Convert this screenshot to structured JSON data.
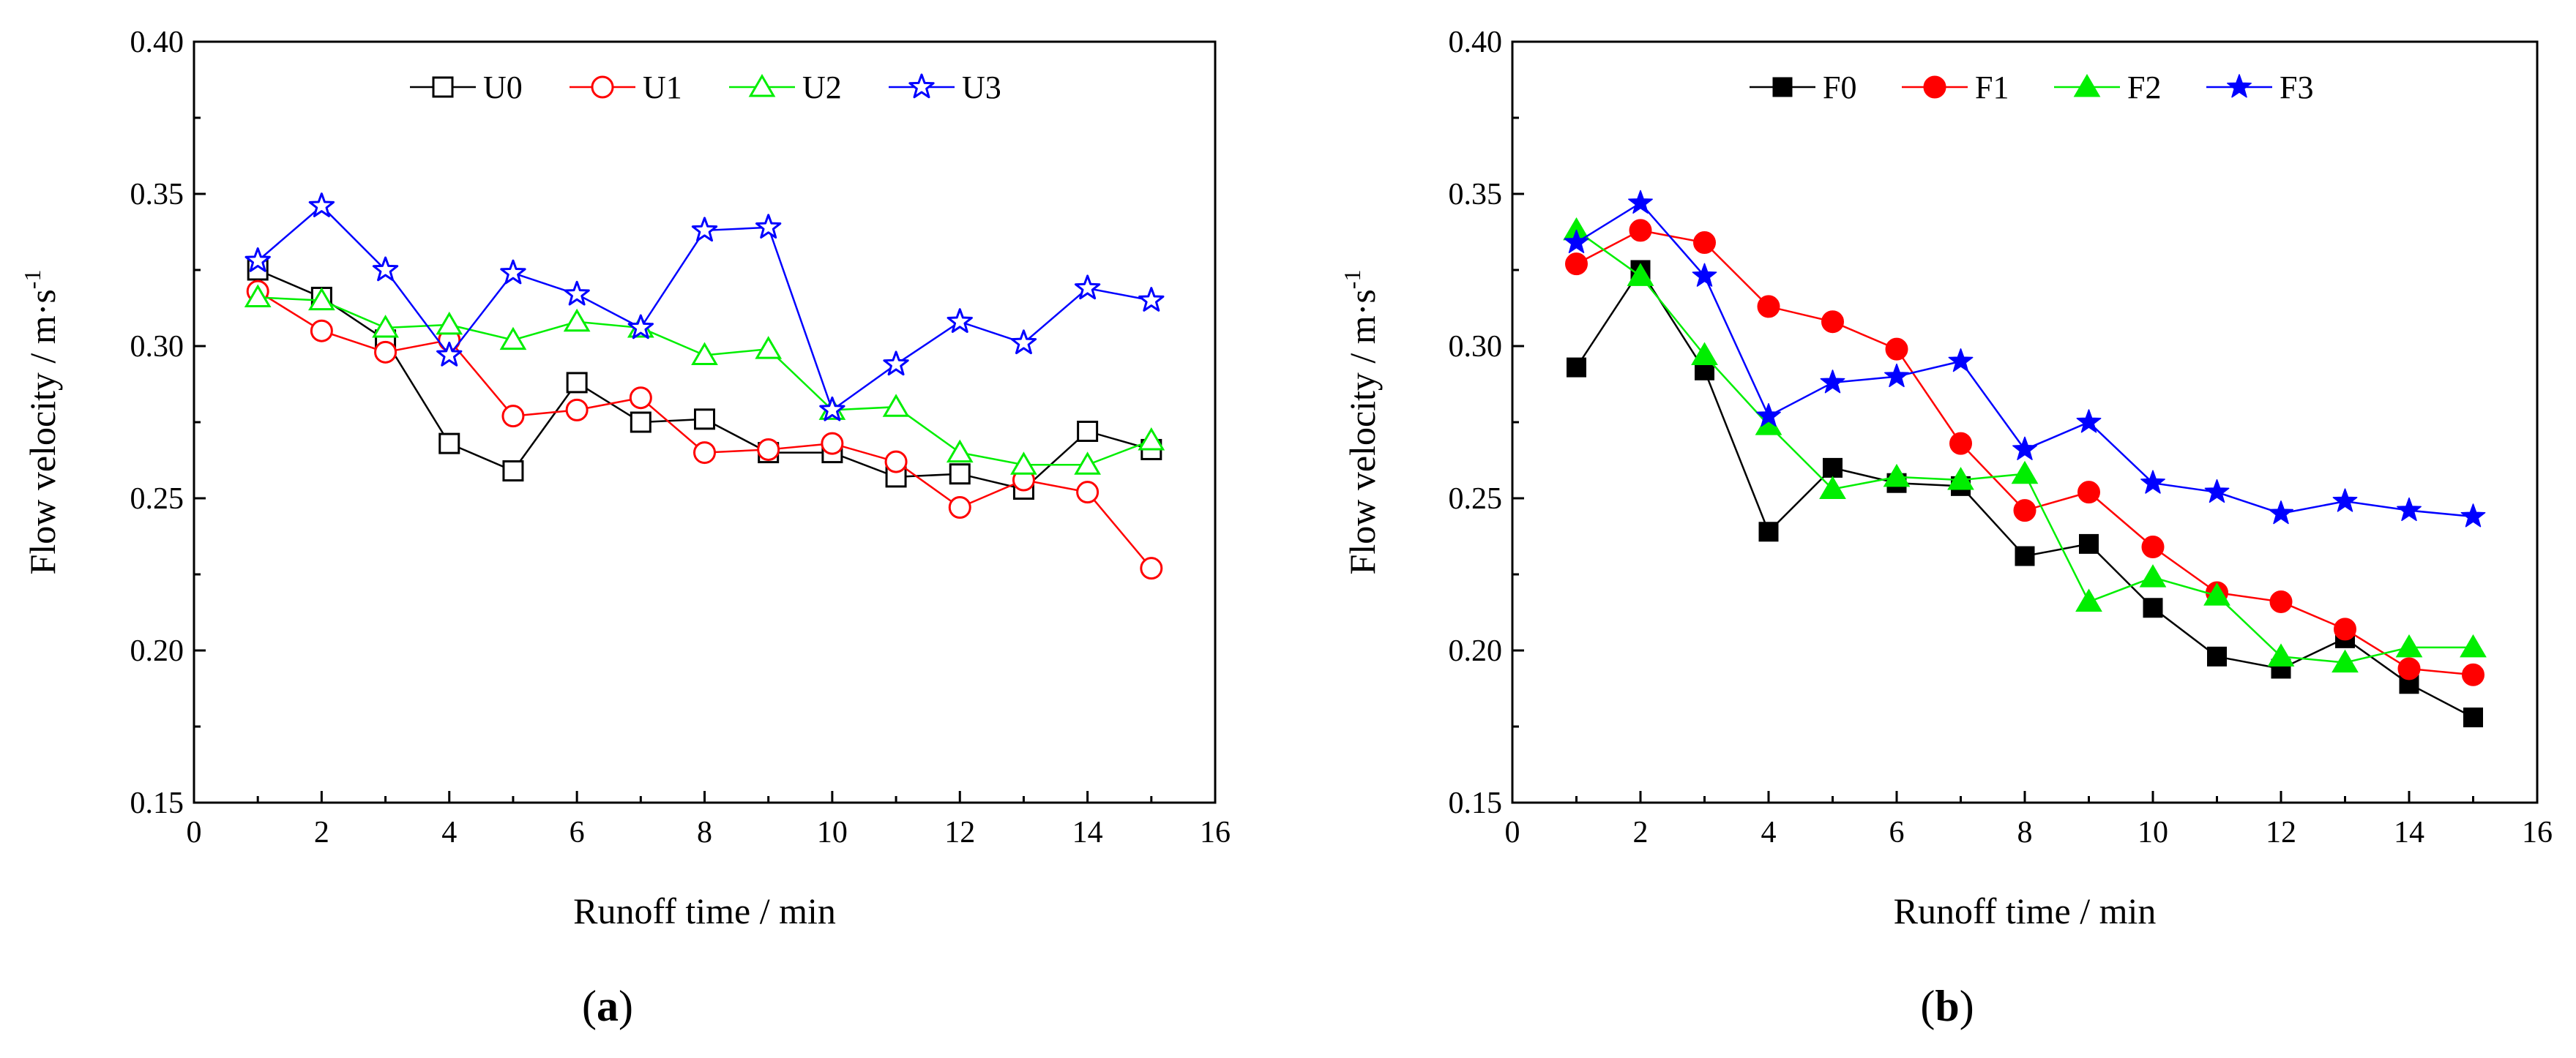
{
  "chart_data": [
    {
      "type": "line",
      "panel_label": "(a)",
      "xlabel": "Runoff time / min",
      "ylabel": "Flow velocity / m·s",
      "ylabel_sup": "-1",
      "xlim": [
        0,
        16
      ],
      "ylim": [
        0.15,
        0.4
      ],
      "xticks": [
        0,
        2,
        4,
        6,
        8,
        10,
        12,
        14,
        16
      ],
      "yticks": [
        "0.15",
        "0.20",
        "0.25",
        "0.30",
        "0.35",
        "0.40"
      ],
      "legend_position": "top",
      "x": [
        1,
        2,
        3,
        4,
        5,
        6,
        7,
        8,
        9,
        10,
        11,
        12,
        13,
        14,
        15
      ],
      "series": [
        {
          "name": "U0",
          "color": "#000000",
          "marker": "square",
          "filled": false,
          "values": [
            0.325,
            0.316,
            0.302,
            0.268,
            0.259,
            0.288,
            0.275,
            0.276,
            0.265,
            0.265,
            0.257,
            0.258,
            0.253,
            0.272,
            0.266
          ]
        },
        {
          "name": "U1",
          "color": "#ff0000",
          "marker": "circle",
          "filled": false,
          "values": [
            0.318,
            0.305,
            0.298,
            0.302,
            0.277,
            0.279,
            0.283,
            0.265,
            0.266,
            0.268,
            0.262,
            0.247,
            0.256,
            0.252,
            0.227
          ]
        },
        {
          "name": "U2",
          "color": "#00ee00",
          "marker": "triangle",
          "filled": false,
          "values": [
            0.316,
            0.315,
            0.306,
            0.307,
            0.302,
            0.308,
            0.306,
            0.297,
            0.299,
            0.279,
            0.28,
            0.265,
            0.261,
            0.261,
            0.269
          ]
        },
        {
          "name": "U3",
          "color": "#0000ff",
          "marker": "star",
          "filled": false,
          "values": [
            0.328,
            0.346,
            0.325,
            0.297,
            0.324,
            0.317,
            0.306,
            0.338,
            0.339,
            0.279,
            0.294,
            0.308,
            0.301,
            0.319,
            0.315
          ]
        }
      ]
    },
    {
      "type": "line",
      "panel_label": "(b)",
      "xlabel": "Runoff time / min",
      "ylabel": "Flow velocity / m·s",
      "ylabel_sup": "-1",
      "xlim": [
        0,
        16
      ],
      "ylim": [
        0.15,
        0.4
      ],
      "xticks": [
        0,
        2,
        4,
        6,
        8,
        10,
        12,
        14,
        16
      ],
      "yticks": [
        "0.15",
        "0.20",
        "0.25",
        "0.30",
        "0.35",
        "0.40"
      ],
      "legend_position": "top",
      "x": [
        1,
        2,
        3,
        4,
        5,
        6,
        7,
        8,
        9,
        10,
        11,
        12,
        13,
        14,
        15
      ],
      "series": [
        {
          "name": "F0",
          "color": "#000000",
          "marker": "square",
          "filled": true,
          "values": [
            0.293,
            0.325,
            0.292,
            0.239,
            0.26,
            0.255,
            0.254,
            0.231,
            0.235,
            0.214,
            0.198,
            0.194,
            0.204,
            0.189,
            0.178
          ]
        },
        {
          "name": "F1",
          "color": "#ff0000",
          "marker": "circle",
          "filled": true,
          "values": [
            0.327,
            0.338,
            0.334,
            0.313,
            0.308,
            0.299,
            0.268,
            0.246,
            0.252,
            0.234,
            0.219,
            0.216,
            0.207,
            0.194,
            0.192
          ]
        },
        {
          "name": "F2",
          "color": "#00ee00",
          "marker": "triangle",
          "filled": true,
          "values": [
            0.338,
            0.323,
            0.297,
            0.274,
            0.253,
            0.257,
            0.256,
            0.258,
            0.216,
            0.224,
            0.218,
            0.198,
            0.196,
            0.201,
            0.201
          ]
        },
        {
          "name": "F3",
          "color": "#0000ff",
          "marker": "star",
          "filled": true,
          "values": [
            0.334,
            0.347,
            0.323,
            0.277,
            0.288,
            0.29,
            0.295,
            0.266,
            0.275,
            0.255,
            0.252,
            0.245,
            0.249,
            0.246,
            0.244
          ]
        }
      ]
    }
  ]
}
